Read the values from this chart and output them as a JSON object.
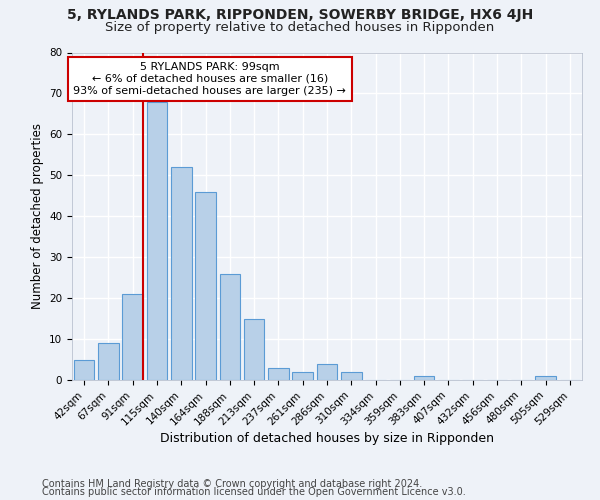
{
  "title": "5, RYLANDS PARK, RIPPONDEN, SOWERBY BRIDGE, HX6 4JH",
  "subtitle": "Size of property relative to detached houses in Ripponden",
  "xlabel": "Distribution of detached houses by size in Ripponden",
  "ylabel": "Number of detached properties",
  "bar_labels": [
    "42sqm",
    "67sqm",
    "91sqm",
    "115sqm",
    "140sqm",
    "164sqm",
    "188sqm",
    "213sqm",
    "237sqm",
    "261sqm",
    "286sqm",
    "310sqm",
    "334sqm",
    "359sqm",
    "383sqm",
    "407sqm",
    "432sqm",
    "456sqm",
    "480sqm",
    "505sqm",
    "529sqm"
  ],
  "bar_values": [
    5,
    9,
    21,
    68,
    52,
    46,
    26,
    15,
    3,
    2,
    4,
    2,
    0,
    0,
    1,
    0,
    0,
    0,
    0,
    1,
    0
  ],
  "bar_color": "#b8d0e8",
  "bar_edge_color": "#5b9bd5",
  "vline_color": "#cc0000",
  "annotation_text": "5 RYLANDS PARK: 99sqm\n← 6% of detached houses are smaller (16)\n93% of semi-detached houses are larger (235) →",
  "annotation_box_color": "#cc0000",
  "ylim": [
    0,
    80
  ],
  "yticks": [
    0,
    10,
    20,
    30,
    40,
    50,
    60,
    70,
    80
  ],
  "footer_line1": "Contains HM Land Registry data © Crown copyright and database right 2024.",
  "footer_line2": "Contains public sector information licensed under the Open Government Licence v3.0.",
  "background_color": "#eef2f8",
  "grid_color": "#ffffff",
  "title_fontsize": 10,
  "subtitle_fontsize": 9.5,
  "xlabel_fontsize": 9,
  "ylabel_fontsize": 8.5,
  "tick_fontsize": 7.5,
  "footer_fontsize": 7,
  "annotation_fontsize": 8
}
